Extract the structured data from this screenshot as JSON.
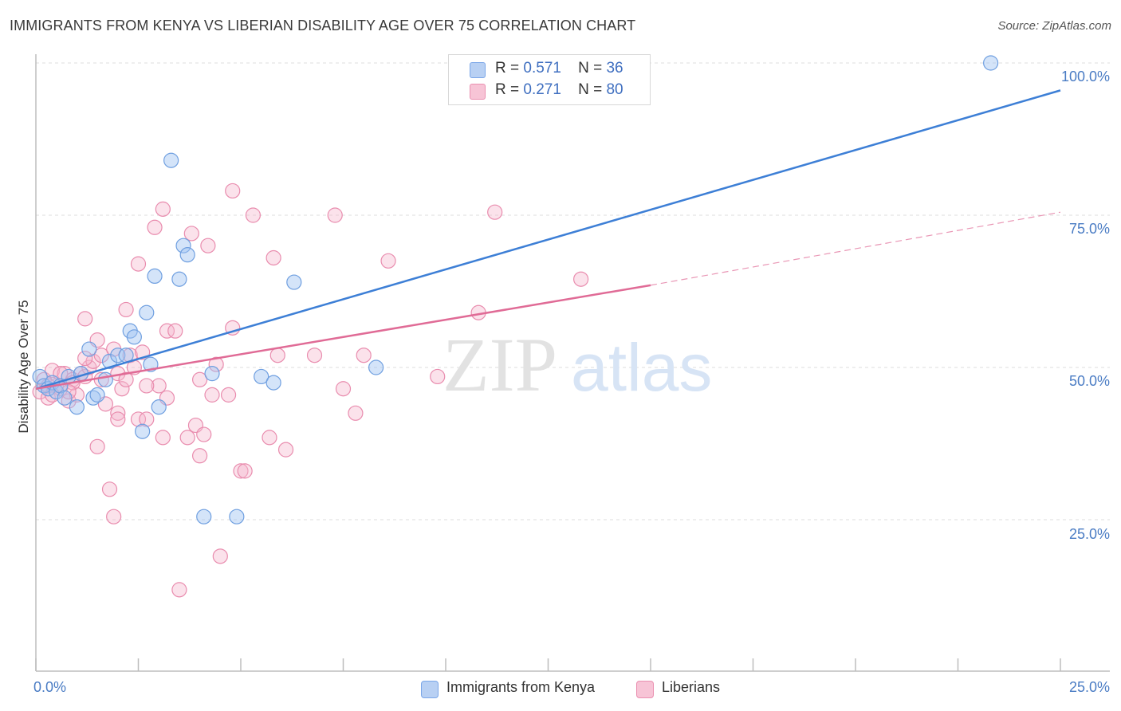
{
  "title": "IMMIGRANTS FROM KENYA VS LIBERIAN DISABILITY AGE OVER 75 CORRELATION CHART",
  "source": "Source: ZipAtlas.com",
  "watermark": {
    "zip": "ZIP",
    "atlas": "atlas"
  },
  "legend": {
    "r_label": "R =",
    "n_label": "N =",
    "series": [
      {
        "name": "Immigrants from Kenya",
        "r": "0.571",
        "n": "36",
        "color": "#7aa6e8",
        "fill": "#b8d0f3"
      },
      {
        "name": "Liberians",
        "r": "0.271",
        "n": "80",
        "color": "#ea8fb0",
        "fill": "#f7c4d6"
      }
    ]
  },
  "chart_data": {
    "type": "scatter",
    "title": "IMMIGRANTS FROM KENYA VS LIBERIAN DISABILITY AGE OVER 75 CORRELATION CHART",
    "xlabel": "",
    "ylabel": "Disability Age Over 75",
    "xlim": [
      0,
      25
    ],
    "ylim": [
      0,
      102
    ],
    "x_tick_labels": [
      "0.0%",
      "25.0%"
    ],
    "y_tick_labels": [
      "100.0%",
      "75.0%",
      "50.0%",
      "25.0%"
    ],
    "y_ticks": [
      100,
      75,
      50,
      25
    ],
    "series": [
      {
        "name": "Immigrants from Kenya",
        "color": "#3d7fd6",
        "points": [
          [
            0.1,
            48.5
          ],
          [
            0.2,
            47
          ],
          [
            0.3,
            46.5
          ],
          [
            0.4,
            47.5
          ],
          [
            0.5,
            46
          ],
          [
            0.6,
            47
          ],
          [
            0.7,
            45
          ],
          [
            0.8,
            48.5
          ],
          [
            1.0,
            43.5
          ],
          [
            1.1,
            49
          ],
          [
            1.3,
            53
          ],
          [
            1.4,
            45
          ],
          [
            1.5,
            45.5
          ],
          [
            1.7,
            48
          ],
          [
            1.8,
            51
          ],
          [
            2.0,
            52
          ],
          [
            2.2,
            52
          ],
          [
            2.3,
            56
          ],
          [
            2.4,
            55
          ],
          [
            2.6,
            39.5
          ],
          [
            2.7,
            59
          ],
          [
            2.8,
            50.5
          ],
          [
            2.9,
            65
          ],
          [
            3.0,
            43.5
          ],
          [
            3.3,
            84
          ],
          [
            3.5,
            64.5
          ],
          [
            3.6,
            70
          ],
          [
            3.7,
            68.5
          ],
          [
            4.1,
            25.5
          ],
          [
            4.3,
            49
          ],
          [
            4.9,
            25.5
          ],
          [
            5.5,
            48.5
          ],
          [
            5.8,
            47.5
          ],
          [
            6.3,
            64
          ],
          [
            8.3,
            50
          ],
          [
            23.3,
            100
          ]
        ],
        "trend": {
          "x": [
            0,
            25
          ],
          "y": [
            46.5,
            95.5
          ]
        }
      },
      {
        "name": "Liberians",
        "color": "#e06b96",
        "points": [
          [
            0.1,
            46
          ],
          [
            0.2,
            48
          ],
          [
            0.3,
            45
          ],
          [
            0.4,
            49.5
          ],
          [
            0.5,
            47
          ],
          [
            0.6,
            46.5
          ],
          [
            0.7,
            49
          ],
          [
            0.8,
            44.5
          ],
          [
            0.9,
            48
          ],
          [
            1.0,
            45.5
          ],
          [
            1.1,
            49
          ],
          [
            1.2,
            48.5
          ],
          [
            1.2,
            58
          ],
          [
            1.3,
            50
          ],
          [
            1.4,
            51
          ],
          [
            1.5,
            54.5
          ],
          [
            1.5,
            37
          ],
          [
            1.6,
            52
          ],
          [
            1.7,
            44
          ],
          [
            1.8,
            30
          ],
          [
            1.9,
            53
          ],
          [
            2.0,
            49
          ],
          [
            2.0,
            42.5
          ],
          [
            2.1,
            46.5
          ],
          [
            2.2,
            48
          ],
          [
            2.2,
            59.5
          ],
          [
            2.3,
            52
          ],
          [
            2.4,
            50
          ],
          [
            2.5,
            41.5
          ],
          [
            2.5,
            67
          ],
          [
            2.6,
            52.5
          ],
          [
            2.7,
            41.5
          ],
          [
            2.9,
            73
          ],
          [
            3.0,
            47
          ],
          [
            3.1,
            38.5
          ],
          [
            3.1,
            76
          ],
          [
            3.2,
            56
          ],
          [
            3.4,
            56
          ],
          [
            3.5,
            13.5
          ],
          [
            3.7,
            38.5
          ],
          [
            3.8,
            72
          ],
          [
            3.9,
            40.5
          ],
          [
            4.0,
            35.5
          ],
          [
            4.1,
            39
          ],
          [
            4.2,
            70
          ],
          [
            4.3,
            45.5
          ],
          [
            4.4,
            50.5
          ],
          [
            4.5,
            19
          ],
          [
            4.7,
            45.5
          ],
          [
            4.8,
            56.5
          ],
          [
            4.8,
            79
          ],
          [
            5.0,
            33
          ],
          [
            5.1,
            33
          ],
          [
            5.3,
            75
          ],
          [
            5.7,
            38.5
          ],
          [
            5.8,
            68
          ],
          [
            5.9,
            52
          ],
          [
            6.1,
            36.5
          ],
          [
            6.8,
            52
          ],
          [
            7.3,
            75
          ],
          [
            7.5,
            46.5
          ],
          [
            7.8,
            42.5
          ],
          [
            8.0,
            52
          ],
          [
            8.6,
            67.5
          ],
          [
            9.8,
            48.5
          ],
          [
            10.8,
            59
          ],
          [
            11.2,
            75.5
          ],
          [
            13.3,
            64.5
          ],
          [
            1.9,
            25.5
          ],
          [
            0.3,
            47
          ],
          [
            0.6,
            49
          ],
          [
            0.9,
            47.5
          ],
          [
            1.2,
            51.5
          ],
          [
            2.0,
            41.5
          ],
          [
            3.2,
            45
          ],
          [
            4.0,
            48
          ],
          [
            0.4,
            45.5
          ],
          [
            0.8,
            46
          ],
          [
            1.6,
            48
          ],
          [
            2.7,
            47
          ]
        ],
        "trend": {
          "x": [
            0,
            15
          ],
          "y": [
            46.5,
            63.5
          ]
        },
        "trend_extension": {
          "x": [
            15,
            25
          ],
          "y": [
            63.5,
            75.5
          ]
        }
      }
    ]
  }
}
